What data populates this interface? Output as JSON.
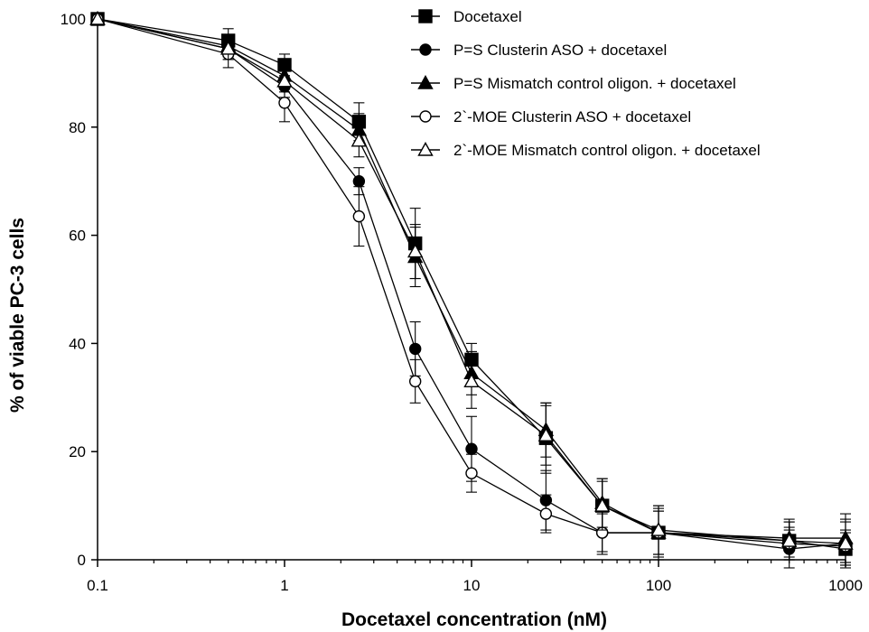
{
  "chart_data": {
    "type": "line",
    "xlabel": "Docetaxel concentration (nM)",
    "ylabel": "% of viable PC-3 cells",
    "xscale": "log",
    "xlim": [
      0.1,
      1000
    ],
    "ylim": [
      0,
      100
    ],
    "x_ticks": [
      0.1,
      1,
      10,
      100,
      1000
    ],
    "x_tick_labels": [
      "0.1",
      "1",
      "10",
      "100",
      "1000"
    ],
    "y_ticks": [
      0,
      20,
      40,
      60,
      80,
      100
    ],
    "y_tick_labels": [
      "0",
      "20",
      "40",
      "60",
      "80",
      "100"
    ],
    "legend_position": "top-right",
    "x": [
      0.1,
      0.5,
      1,
      2.5,
      5,
      10,
      25,
      50,
      100,
      500,
      1000
    ],
    "series": [
      {
        "name": "Docetaxel",
        "marker": "square-filled",
        "values": [
          100,
          96,
          91.5,
          81,
          58.5,
          37,
          22.5,
          10,
          5,
          3.5,
          2
        ],
        "errors": [
          0,
          2.2,
          2,
          3.5,
          6.5,
          3,
          6.5,
          5,
          5,
          3.5,
          3
        ]
      },
      {
        "name": "P=S Clusterin ASO + docetaxel",
        "marker": "circle-filled",
        "values": [
          100,
          94.5,
          87.5,
          70,
          39,
          20.5,
          11,
          5,
          5,
          2,
          3
        ],
        "errors": [
          0,
          2,
          2,
          2.5,
          5,
          6,
          5.5,
          4,
          4,
          3.5,
          4.5
        ]
      },
      {
        "name": "P=S Mismatch control oligon. + docetaxel",
        "marker": "triangle-filled",
        "values": [
          100,
          95,
          89.5,
          79.5,
          56,
          34.5,
          24,
          10.5,
          5,
          4,
          4
        ],
        "errors": [
          0,
          2,
          2,
          3,
          5.5,
          4,
          5,
          4.5,
          4.5,
          3.5,
          4.5
        ]
      },
      {
        "name": "2`-MOE Clusterin ASO + docetaxel",
        "marker": "circle-open",
        "values": [
          100,
          93.5,
          84.5,
          63.5,
          33,
          16,
          8.5,
          5,
          5,
          3,
          2.5
        ],
        "errors": [
          0,
          2.5,
          3.5,
          5.5,
          4,
          3.5,
          3.5,
          3.5,
          4,
          3,
          3
        ]
      },
      {
        "name": "2`-MOE Mismatch control oligon. + docetaxel",
        "marker": "triangle-open",
        "values": [
          100,
          94.5,
          88.5,
          77.5,
          57,
          33,
          23,
          10,
          5.5,
          3.5,
          3
        ],
        "errors": [
          0,
          2,
          2,
          3,
          5,
          5,
          5.5,
          4.5,
          4.5,
          3.5,
          4
        ]
      }
    ]
  }
}
